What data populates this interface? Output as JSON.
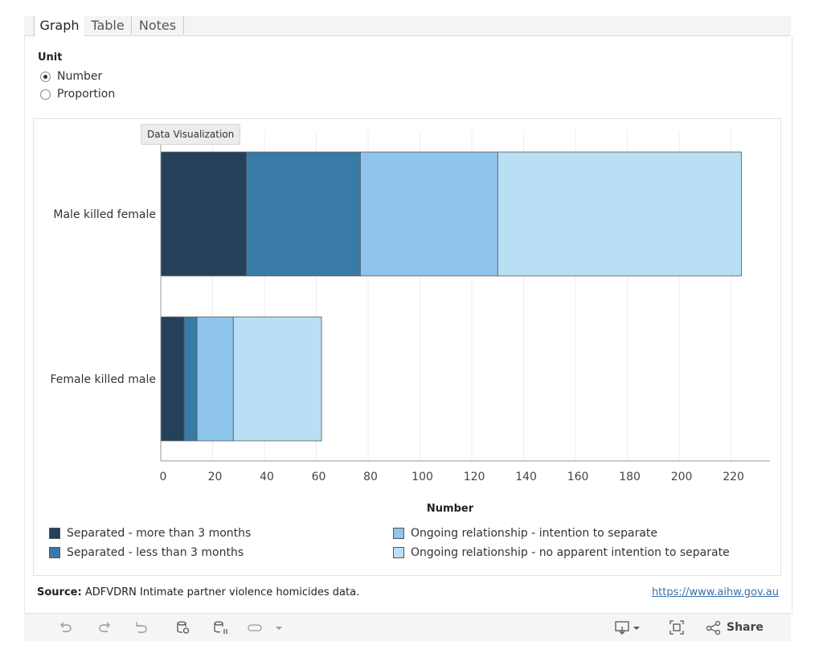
{
  "tabs": [
    {
      "label": "Graph",
      "active": true
    },
    {
      "label": "Table",
      "active": false
    },
    {
      "label": "Notes",
      "active": false
    }
  ],
  "unit": {
    "label": "Unit",
    "options": [
      {
        "label": "Number",
        "checked": true
      },
      {
        "label": "Proportion",
        "checked": false
      }
    ]
  },
  "tooltip": "Data Visualization",
  "chart_data": {
    "type": "bar",
    "orientation": "horizontal",
    "stacked": true,
    "categories": [
      "Male killed female",
      "Female killed male"
    ],
    "series": [
      {
        "name": "Separated - more than 3 months",
        "color": "#24405a",
        "values": [
          33,
          9
        ]
      },
      {
        "name": "Separated - less than 3 months",
        "color": "#387ba6",
        "values": [
          44,
          5
        ]
      },
      {
        "name": "Ongoing relationship - intention to separate",
        "color": "#8fc4ec",
        "values": [
          53,
          14
        ]
      },
      {
        "name": "Ongoing relationship - no apparent intention to separate",
        "color": "#b8dff4",
        "values": [
          94,
          34
        ]
      }
    ],
    "xlabel": "Number",
    "xlim": [
      0,
      235
    ],
    "xticks": [
      0,
      20,
      40,
      60,
      80,
      100,
      120,
      140,
      160,
      180,
      200,
      220
    ],
    "grid": true,
    "legend": "bottom"
  },
  "source": {
    "label": "Source:",
    "text": "ADFVDRN Intimate partner violence homicides data."
  },
  "link": "https://www.aihw.gov.au",
  "toolbar": {
    "icons": [
      "undo-icon",
      "redo-icon",
      "revert-icon",
      "refresh-data-icon",
      "pause-data-icon",
      "toggle-icon",
      "dropdown-arrow-icon",
      "download-icon",
      "fullscreen-icon",
      "share-icon"
    ],
    "share_label": "Share"
  }
}
